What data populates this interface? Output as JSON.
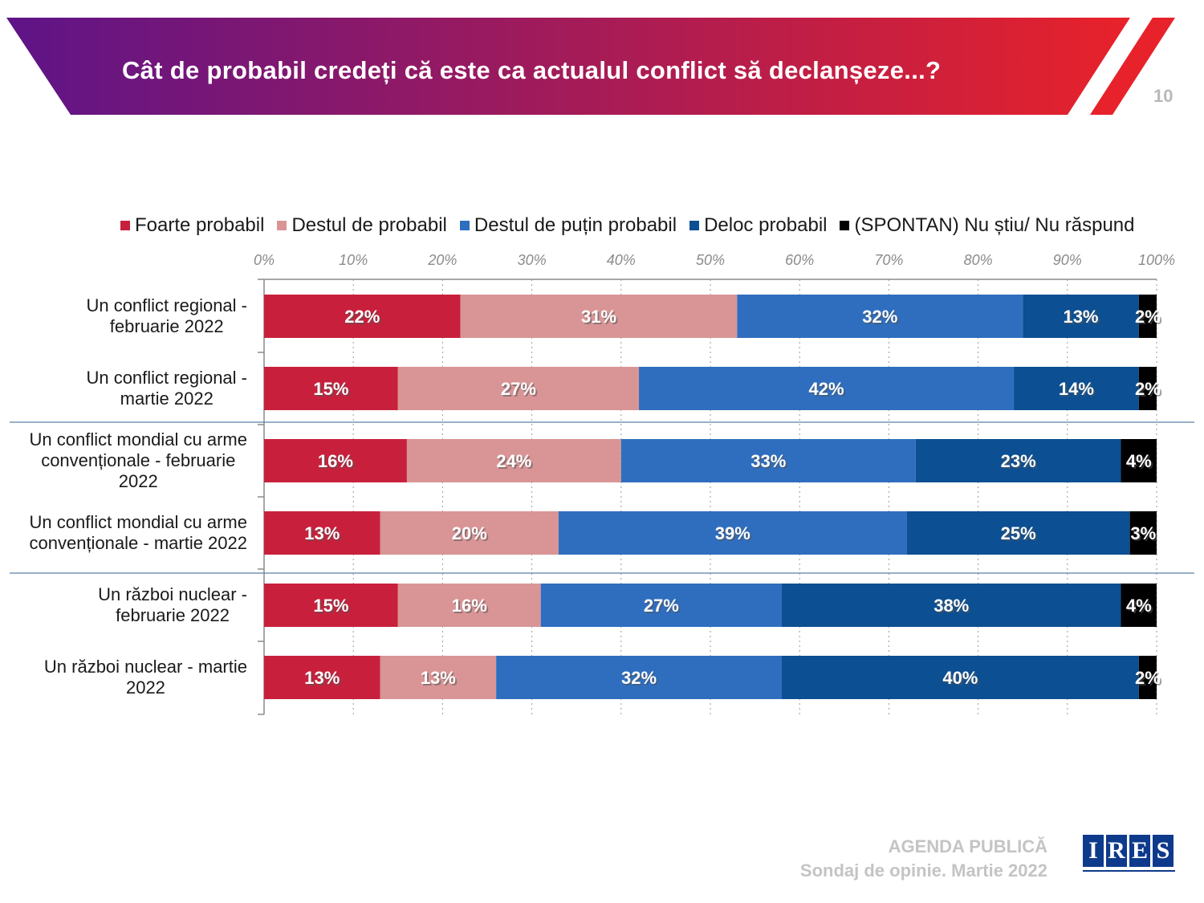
{
  "header": {
    "title": "Cât de probabil credeți că este ca actualul conflict să declanșeze...?",
    "page_number": "10"
  },
  "colors": {
    "banner_start": "#5e1488",
    "banner_end": "#e8222a",
    "accent_stripe": "#e8222a"
  },
  "chart_data": {
    "type": "bar",
    "orientation": "horizontal",
    "stacked": "100%",
    "title": "Cât de probabil credeți că este ca actualul conflict să declanșeze...?",
    "xlim": [
      0,
      100
    ],
    "xticks": [
      "0%",
      "10%",
      "20%",
      "30%",
      "40%",
      "50%",
      "60%",
      "70%",
      "80%",
      "90%",
      "100%"
    ],
    "categories": [
      "Un conflict regional -\nfebruarie 2022",
      "Un conflict regional -\nmartie 2022",
      "Un conflict mondial cu arme\nconvenționale - februarie\n2022",
      "Un conflict mondial cu arme\nconvenționale - martie 2022",
      "Un război nuclear -\nfebruarie 2022",
      "Un război nuclear - martie\n2022"
    ],
    "series": [
      {
        "name": "Foarte probabil",
        "color": "#c8203c",
        "values": [
          22,
          15,
          16,
          13,
          15,
          13
        ]
      },
      {
        "name": "Destul de probabil",
        "color": "#d99596",
        "values": [
          31,
          27,
          24,
          20,
          16,
          13
        ]
      },
      {
        "name": "Destul de puțin probabil",
        "color": "#2f6ebf",
        "values": [
          32,
          42,
          33,
          39,
          27,
          32
        ]
      },
      {
        "name": "Deloc probabil",
        "color": "#0c4f92",
        "values": [
          13,
          14,
          23,
          25,
          38,
          40
        ]
      },
      {
        "name": "(SPONTAN) Nu știu/ Nu răspund",
        "color": "#000000",
        "values": [
          2,
          2,
          4,
          3,
          4,
          2
        ]
      }
    ],
    "legend_position": "top"
  },
  "footer": {
    "line1": "AGENDA PUBLICĂ",
    "line2": "Sondaj de opinie. Martie 2022"
  },
  "logo": {
    "letters": [
      "I",
      "R",
      "E",
      "S"
    ]
  }
}
